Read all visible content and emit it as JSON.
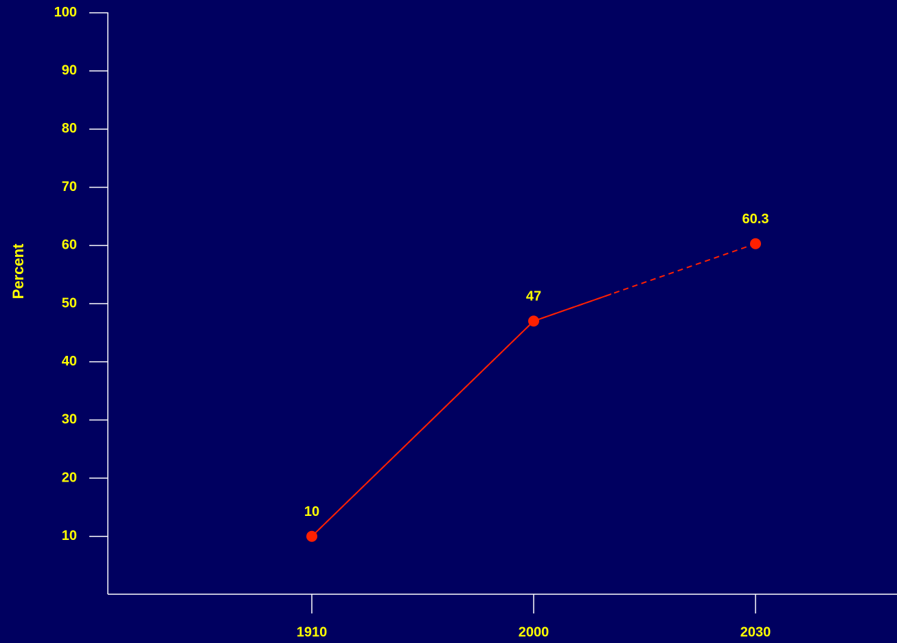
{
  "chart_data": {
    "type": "line",
    "y_label": "Percent",
    "categories": [
      "1910",
      "2000",
      "2030"
    ],
    "values": [
      10,
      47,
      60.3
    ],
    "color": "#ff2000",
    "ylim": [
      0,
      100
    ],
    "yticks": [
      10,
      20,
      30,
      40,
      50,
      60,
      70,
      80,
      90,
      100
    ],
    "grid": false
  }
}
